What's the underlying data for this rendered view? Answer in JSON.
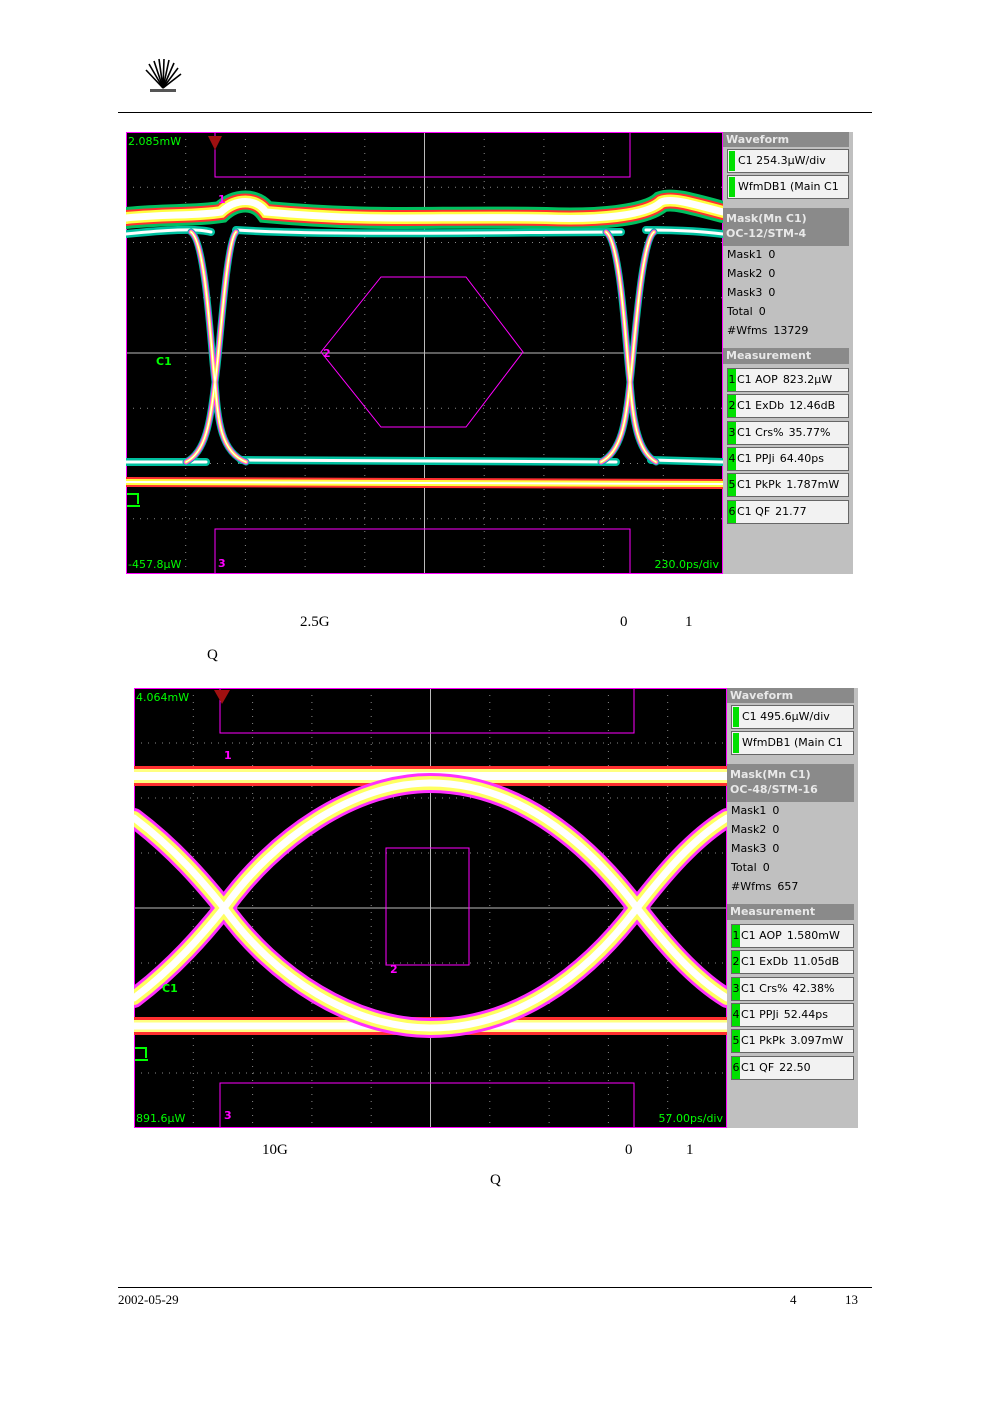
{
  "figures": [
    {
      "scope": {
        "top_label": "2.085mW",
        "channel": "C1",
        "bottom_label": "-457.8µW",
        "timebase": "230.0ps/div",
        "markers": [
          "1",
          "2",
          "3"
        ]
      },
      "panel": {
        "waveform_title": "Waveform",
        "waveform_items": [
          "C1 254.3µW/div",
          "WfmDB1 (Main C1"
        ],
        "mask_title": [
          "Mask(Mn C1)",
          "OC-12/STM-4"
        ],
        "mask_rows": [
          [
            "Mask1",
            "0"
          ],
          [
            "Mask2",
            "0"
          ],
          [
            "Mask3",
            "0"
          ],
          [
            "Total",
            "0"
          ],
          [
            "#Wfms",
            "13729"
          ]
        ],
        "measurement_title": "Measurement",
        "measurements": [
          [
            "1",
            "C1 AOP",
            "823.2µW"
          ],
          [
            "2",
            "C1 ExDb",
            "12.46dB"
          ],
          [
            "3",
            "C1 Crs%",
            "35.77%"
          ],
          [
            "4",
            "C1 PPJi",
            "64.40ps"
          ],
          [
            "5",
            "C1 PkPk",
            "1.787mW"
          ],
          [
            "6",
            "C1 QF",
            "21.77"
          ]
        ]
      },
      "caption": {
        "line1": [
          "2.5G",
          "0",
          "1"
        ],
        "line2": [
          "Q"
        ]
      }
    },
    {
      "scope": {
        "top_label": "4.064mW",
        "channel": "C1",
        "bottom_label": "891.6µW",
        "timebase": "57.00ps/div",
        "markers": [
          "1",
          "2",
          "3"
        ]
      },
      "panel": {
        "waveform_title": "Waveform",
        "waveform_items": [
          "C1 495.6µW/div",
          "WfmDB1 (Main C1"
        ],
        "mask_title": [
          "Mask(Mn C1)",
          "OC-48/STM-16"
        ],
        "mask_rows": [
          [
            "Mask1",
            "0"
          ],
          [
            "Mask2",
            "0"
          ],
          [
            "Mask3",
            "0"
          ],
          [
            "Total",
            "0"
          ],
          [
            "#Wfms",
            "657"
          ]
        ],
        "measurement_title": "Measurement",
        "measurements": [
          [
            "1",
            "C1 AOP",
            "1.580mW"
          ],
          [
            "2",
            "C1 ExDb",
            "11.05dB"
          ],
          [
            "3",
            "C1 Crs%",
            "42.38%"
          ],
          [
            "4",
            "C1 PPJi",
            "52.44ps"
          ],
          [
            "5",
            "C1 PkPk",
            "3.097mW"
          ],
          [
            "6",
            "C1 QF",
            "22.50"
          ]
        ]
      },
      "caption": {
        "line1": [
          "10G",
          "0",
          "1"
        ],
        "line2": [
          "Q"
        ]
      }
    }
  ],
  "footer": {
    "date": "2002-05-29",
    "page": "4",
    "total": "13"
  }
}
